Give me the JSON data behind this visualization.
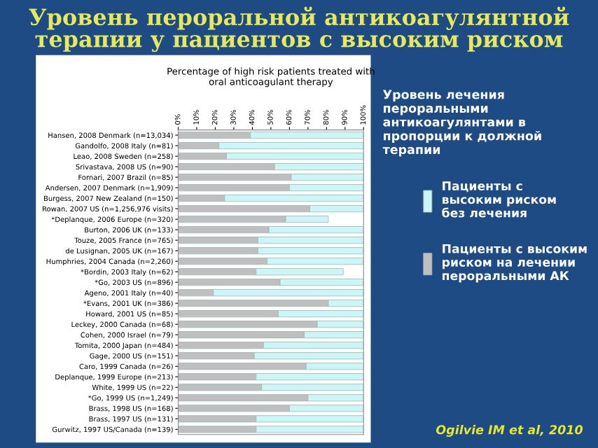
{
  "chart_data": {
    "type": "bar",
    "orientation": "horizontal",
    "stacked": true,
    "title": "Уровень пероральной антикоагулянтной\nтерапии у пациентов с высоким риском",
    "subtitle": "Percentage of high risk patients treated with\noral anticoagulant therapy",
    "annotations": [
      "Уровень лечения\nпероральными\nантикоагулянтами в\nпропорции к должной\nтерапии",
      "Ogilvie IM et al, 2010"
    ],
    "categories": [
      "Hansen, 2008 Denmark (n=13,034)",
      "Gandolfo, 2008 Italy (n=81)",
      "Leao, 2008 Sweden (n=258)",
      "Srivastava, 2008 US (n=90)",
      "Fornari, 2007 Brazil (n=85)",
      "Andersen, 2007 Denmark (n=1,909)",
      "Burgess, 2007 New Zealand (n=150)",
      "Rowan, 2007 US (n=1,256,976 visits)",
      "*Deplanque, 2006 Europe (n=320)",
      "Burton, 2006 UK (n=133)",
      "Touze, 2005 France (n=765)",
      "de Lusignan, 2005 UK (n=167)",
      "Humphries, 2004 Canada (n=2,260)",
      "*Bordin, 2003 Italy (n=62)",
      "*Go, 2003 US (n=896)",
      "Ageno, 2001 Italy (n=40)",
      "*Evans, 2001 UK (n=386)",
      "Howard, 2001 US (n=85)",
      "Leckey, 2000 Canada (n=68)",
      "Cohen, 2000 Israel (n=79)",
      "Tomita, 2000 Japan (n=484)",
      "Gage, 2000 US (n=151)",
      "Caro, 1999 Canada (n=26)",
      "Deplanque, 1999 Europe (n=213)",
      "White, 1999 US (n=22)",
      "*Go, 1999 US (n=1,249)",
      "Brass, 1998 US (n=168)",
      "Brass, 1997 US (n=131)",
      "Gurwitz, 1997 US/Canada (n=139)"
    ],
    "series": [
      {
        "name": "Пациенты с высоким\nриском на лечении\nпероральными АК",
        "color": "#bfbfbf",
        "values": [
          39,
          22,
          26,
          52,
          61,
          60,
          25,
          71,
          58,
          49,
          43,
          43,
          48,
          42,
          55,
          19,
          81,
          54,
          75,
          68,
          46,
          41,
          69,
          42,
          45,
          70,
          60,
          42,
          42
        ]
      },
      {
        "name": "Пациенты с\nвысоким риском\nбез лечения",
        "color": "#ccf5f5",
        "values": [
          61,
          78,
          74,
          48,
          39,
          40,
          75,
          29,
          23,
          51,
          57,
          57,
          52,
          47,
          45,
          81,
          19,
          46,
          25,
          32,
          54,
          59,
          31,
          58,
          55,
          30,
          40,
          58,
          58
        ]
      }
    ],
    "xlim": [
      0,
      100
    ],
    "xticks": [
      {
        "value": 0,
        "label": "0%"
      },
      {
        "value": 10,
        "label": "10%"
      },
      {
        "value": 20,
        "label": "20%"
      },
      {
        "value": 30,
        "label": "30%"
      },
      {
        "value": 40,
        "label": "40%"
      },
      {
        "value": 50,
        "label": "50%"
      },
      {
        "value": 60,
        "label": "60%"
      },
      {
        "value": 70,
        "label": "70%"
      },
      {
        "value": 80,
        "label": "80%"
      },
      {
        "value": 90,
        "label": "90%"
      },
      {
        "value": 100,
        "label": "100%"
      }
    ],
    "legend": "right"
  }
}
